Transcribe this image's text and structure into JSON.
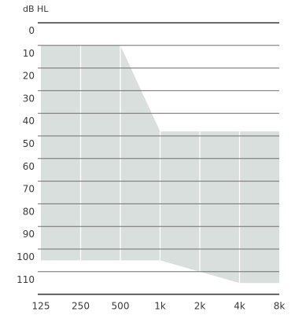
{
  "chart_data": {
    "type": "area",
    "title": "",
    "unit_label": "dB HL",
    "xlabel": "",
    "ylabel": "dB HL",
    "x_ticks": [
      "125",
      "250",
      "500",
      "1k",
      "2k",
      "4k",
      "8k"
    ],
    "x_scale": "log2",
    "y_ticks": [
      "0",
      "10",
      "20",
      "30",
      "40",
      "50",
      "60",
      "70",
      "80",
      "90",
      "100",
      "110"
    ],
    "ylim": [
      0,
      120
    ],
    "y_inverted": true,
    "grid": "horizontal",
    "fit_range": {
      "upper_boundary": [
        {
          "x": 125,
          "y": 10
        },
        {
          "x": 250,
          "y": 10
        },
        {
          "x": 500,
          "y": 10
        },
        {
          "x": 1000,
          "y": 48
        },
        {
          "x": 2000,
          "y": 48
        },
        {
          "x": 4000,
          "y": 48
        },
        {
          "x": 8000,
          "y": 48
        }
      ],
      "lower_boundary": [
        {
          "x": 125,
          "y": 105
        },
        {
          "x": 250,
          "y": 105
        },
        {
          "x": 500,
          "y": 105
        },
        {
          "x": 1000,
          "y": 105
        },
        {
          "x": 2000,
          "y": 110
        },
        {
          "x": 4000,
          "y": 115
        },
        {
          "x": 8000,
          "y": 115
        }
      ]
    },
    "colors": {
      "fill": "#d9dfdc",
      "grid": "#6f6f6f",
      "axis": "#3a3a3a",
      "text": "#3a3a3a",
      "vertical_lines": "#ffffff"
    }
  }
}
